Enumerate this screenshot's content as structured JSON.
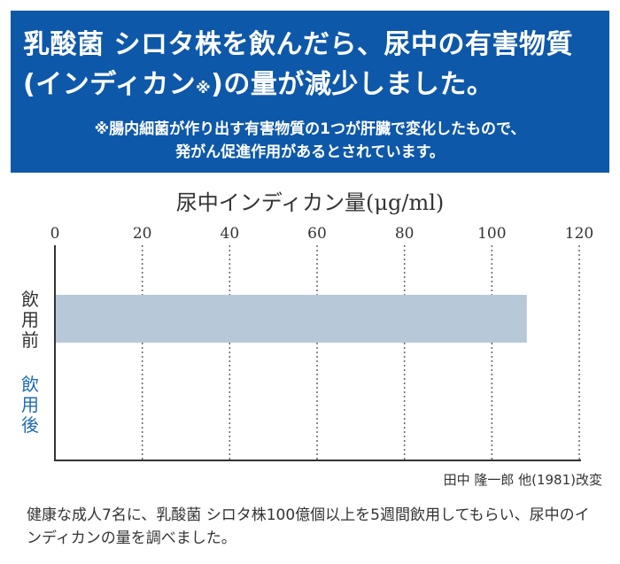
{
  "banner": {
    "headline_line1": "乳酸菌 シロタ株を飲んだら、尿中の有害物質",
    "headline_line2_pre": "(インディカン",
    "headline_line2_mark": "※",
    "headline_line2_post": ")の量が減少しました。",
    "footnote_line1": "※腸内細菌が作り出す有害物質の1つが肝臓で変化したもので、",
    "footnote_line2": "発がん促進作用があるとされています。",
    "background_color": "#0e58a9"
  },
  "chart_data": {
    "type": "bar",
    "orientation": "horizontal",
    "title": "尿中インディカン量(μg/ml)",
    "categories": [
      "飲用前",
      "飲用後"
    ],
    "category_colors": [
      "#333333",
      "#1f6db5"
    ],
    "values": [
      108,
      0
    ],
    "bar_color": "#b7c8d8",
    "xlim": [
      0,
      120
    ],
    "xticks": [
      0,
      20,
      40,
      60,
      80,
      100,
      120
    ],
    "grid": "vertical dotted",
    "source": "田中 隆一郎 他(1981)改変"
  },
  "caption": "健康な成人7名に、乳酸菌 シロタ株100億個以上を5週間飲用してもらい、尿中のインディカンの量を調べました。"
}
